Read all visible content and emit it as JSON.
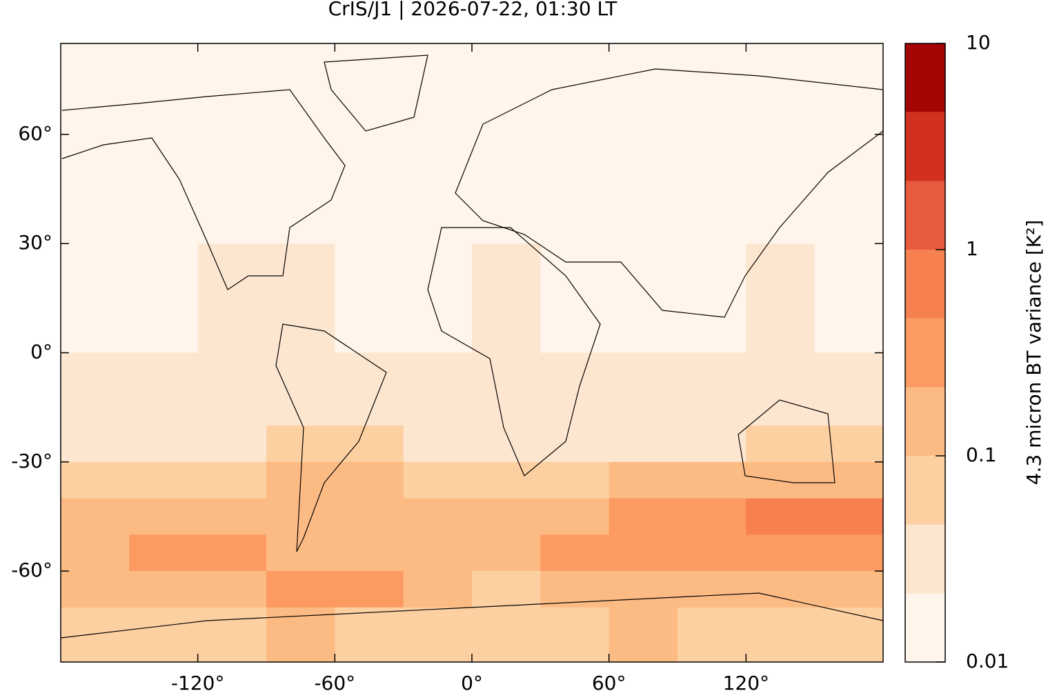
{
  "chart_data": {
    "type": "heatmap",
    "title": "CrIS/J1 | 2026-07-22, 01:30 LT",
    "xlim": [
      -180,
      180
    ],
    "ylim": [
      -85,
      85
    ],
    "xticks": [
      {
        "value": -120,
        "label": "-120°"
      },
      {
        "value": -60,
        "label": "-60°"
      },
      {
        "value": 0,
        "label": "0°"
      },
      {
        "value": 60,
        "label": "60°"
      },
      {
        "value": 120,
        "label": "120°"
      }
    ],
    "yticks": [
      {
        "value": 60,
        "label": "60°"
      },
      {
        "value": 30,
        "label": "30°"
      },
      {
        "value": 0,
        "label": "0°"
      },
      {
        "value": -30,
        "label": "-30°"
      },
      {
        "value": -60,
        "label": "-60°"
      }
    ],
    "lon_edges": [
      -180,
      -150,
      -120,
      -90,
      -60,
      -30,
      0,
      30,
      60,
      90,
      120,
      150,
      180
    ],
    "lat_edges": [
      85,
      30,
      0,
      -20,
      -30,
      -40,
      -50,
      -60,
      -70,
      -85
    ],
    "values": [
      [
        0.012,
        0.012,
        0.012,
        0.015,
        0.015,
        0.012,
        0.012,
        0.012,
        0.012,
        0.012,
        0.015,
        0.012
      ],
      [
        0.02,
        0.02,
        0.025,
        0.03,
        0.02,
        0.02,
        0.025,
        0.02,
        0.02,
        0.02,
        0.025,
        0.02
      ],
      [
        0.025,
        0.025,
        0.025,
        0.025,
        0.03,
        0.025,
        0.025,
        0.025,
        0.025,
        0.025,
        0.025,
        0.03
      ],
      [
        0.04,
        0.04,
        0.04,
        0.05,
        0.08,
        0.04,
        0.04,
        0.04,
        0.04,
        0.04,
        0.05,
        0.05
      ],
      [
        0.08,
        0.08,
        0.08,
        0.1,
        0.15,
        0.08,
        0.08,
        0.08,
        0.15,
        0.15,
        0.15,
        0.2
      ],
      [
        0.15,
        0.15,
        0.15,
        0.12,
        0.2,
        0.1,
        0.12,
        0.15,
        0.4,
        0.25,
        0.5,
        0.5
      ],
      [
        0.2,
        0.3,
        0.3,
        0.15,
        0.12,
        0.1,
        0.1,
        0.25,
        0.3,
        0.25,
        0.25,
        0.4
      ],
      [
        0.1,
        0.1,
        0.15,
        0.3,
        0.3,
        0.1,
        0.08,
        0.1,
        0.1,
        0.1,
        0.1,
        0.1
      ],
      [
        0.05,
        0.05,
        0.08,
        0.15,
        0.08,
        0.05,
        0.05,
        0.05,
        0.15,
        0.08,
        0.05,
        0.05
      ]
    ],
    "colorbar": {
      "label": "4.3 micron BT variance [K²]",
      "log": true,
      "ylim": [
        0.01,
        10
      ],
      "yticks": [
        0.01,
        0.1,
        1,
        10
      ],
      "levels": [
        0.01,
        0.0215,
        0.0464,
        0.1,
        0.215,
        0.464,
        1,
        2.15,
        4.64,
        10
      ],
      "colors": [
        "#fff5eb",
        "#fde6cf",
        "#fdd0a2",
        "#fdbb84",
        "#fc9a62",
        "#f6804f",
        "#e85a3e",
        "#d2311f",
        "#a40505"
      ]
    }
  }
}
